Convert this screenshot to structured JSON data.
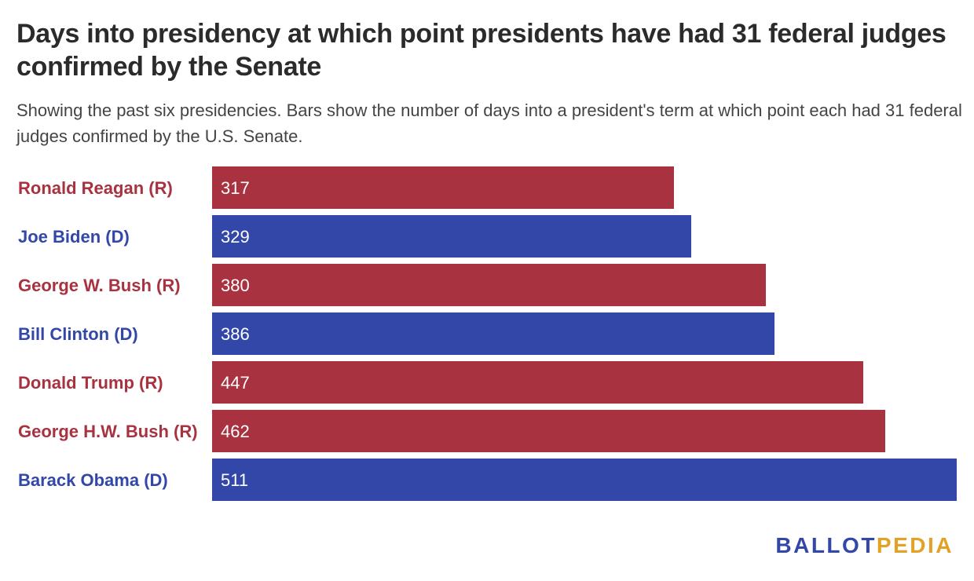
{
  "header": {
    "title": "Days into presidency at which point presidents have had 31 federal judges confirmed by the Senate",
    "subtitle": "Showing the past six presidencies. Bars show the number of days into a president's term at which point each had 31 federal judges confirmed by the U.S. Senate."
  },
  "colors": {
    "R": "#a8323f",
    "D": "#3247a8"
  },
  "chart_data": {
    "type": "bar",
    "orientation": "horizontal",
    "title": "Days into presidency at which point presidents have had 31 federal judges confirmed by the Senate",
    "xlabel": "",
    "ylabel": "",
    "xlim": [
      0,
      511
    ],
    "grid": false,
    "legend": "none",
    "categories": [
      "Ronald Reagan (R)",
      "Joe Biden (D)",
      "George W. Bush (R)",
      "Bill Clinton (D)",
      "Donald Trump (R)",
      "George H.W. Bush (R)",
      "Barack Obama (D)"
    ],
    "party": [
      "R",
      "D",
      "R",
      "D",
      "R",
      "R",
      "D"
    ],
    "values": [
      317,
      329,
      380,
      386,
      447,
      462,
      511
    ]
  },
  "logo": {
    "part1": "BALLOT",
    "part2": "PEDIA"
  }
}
